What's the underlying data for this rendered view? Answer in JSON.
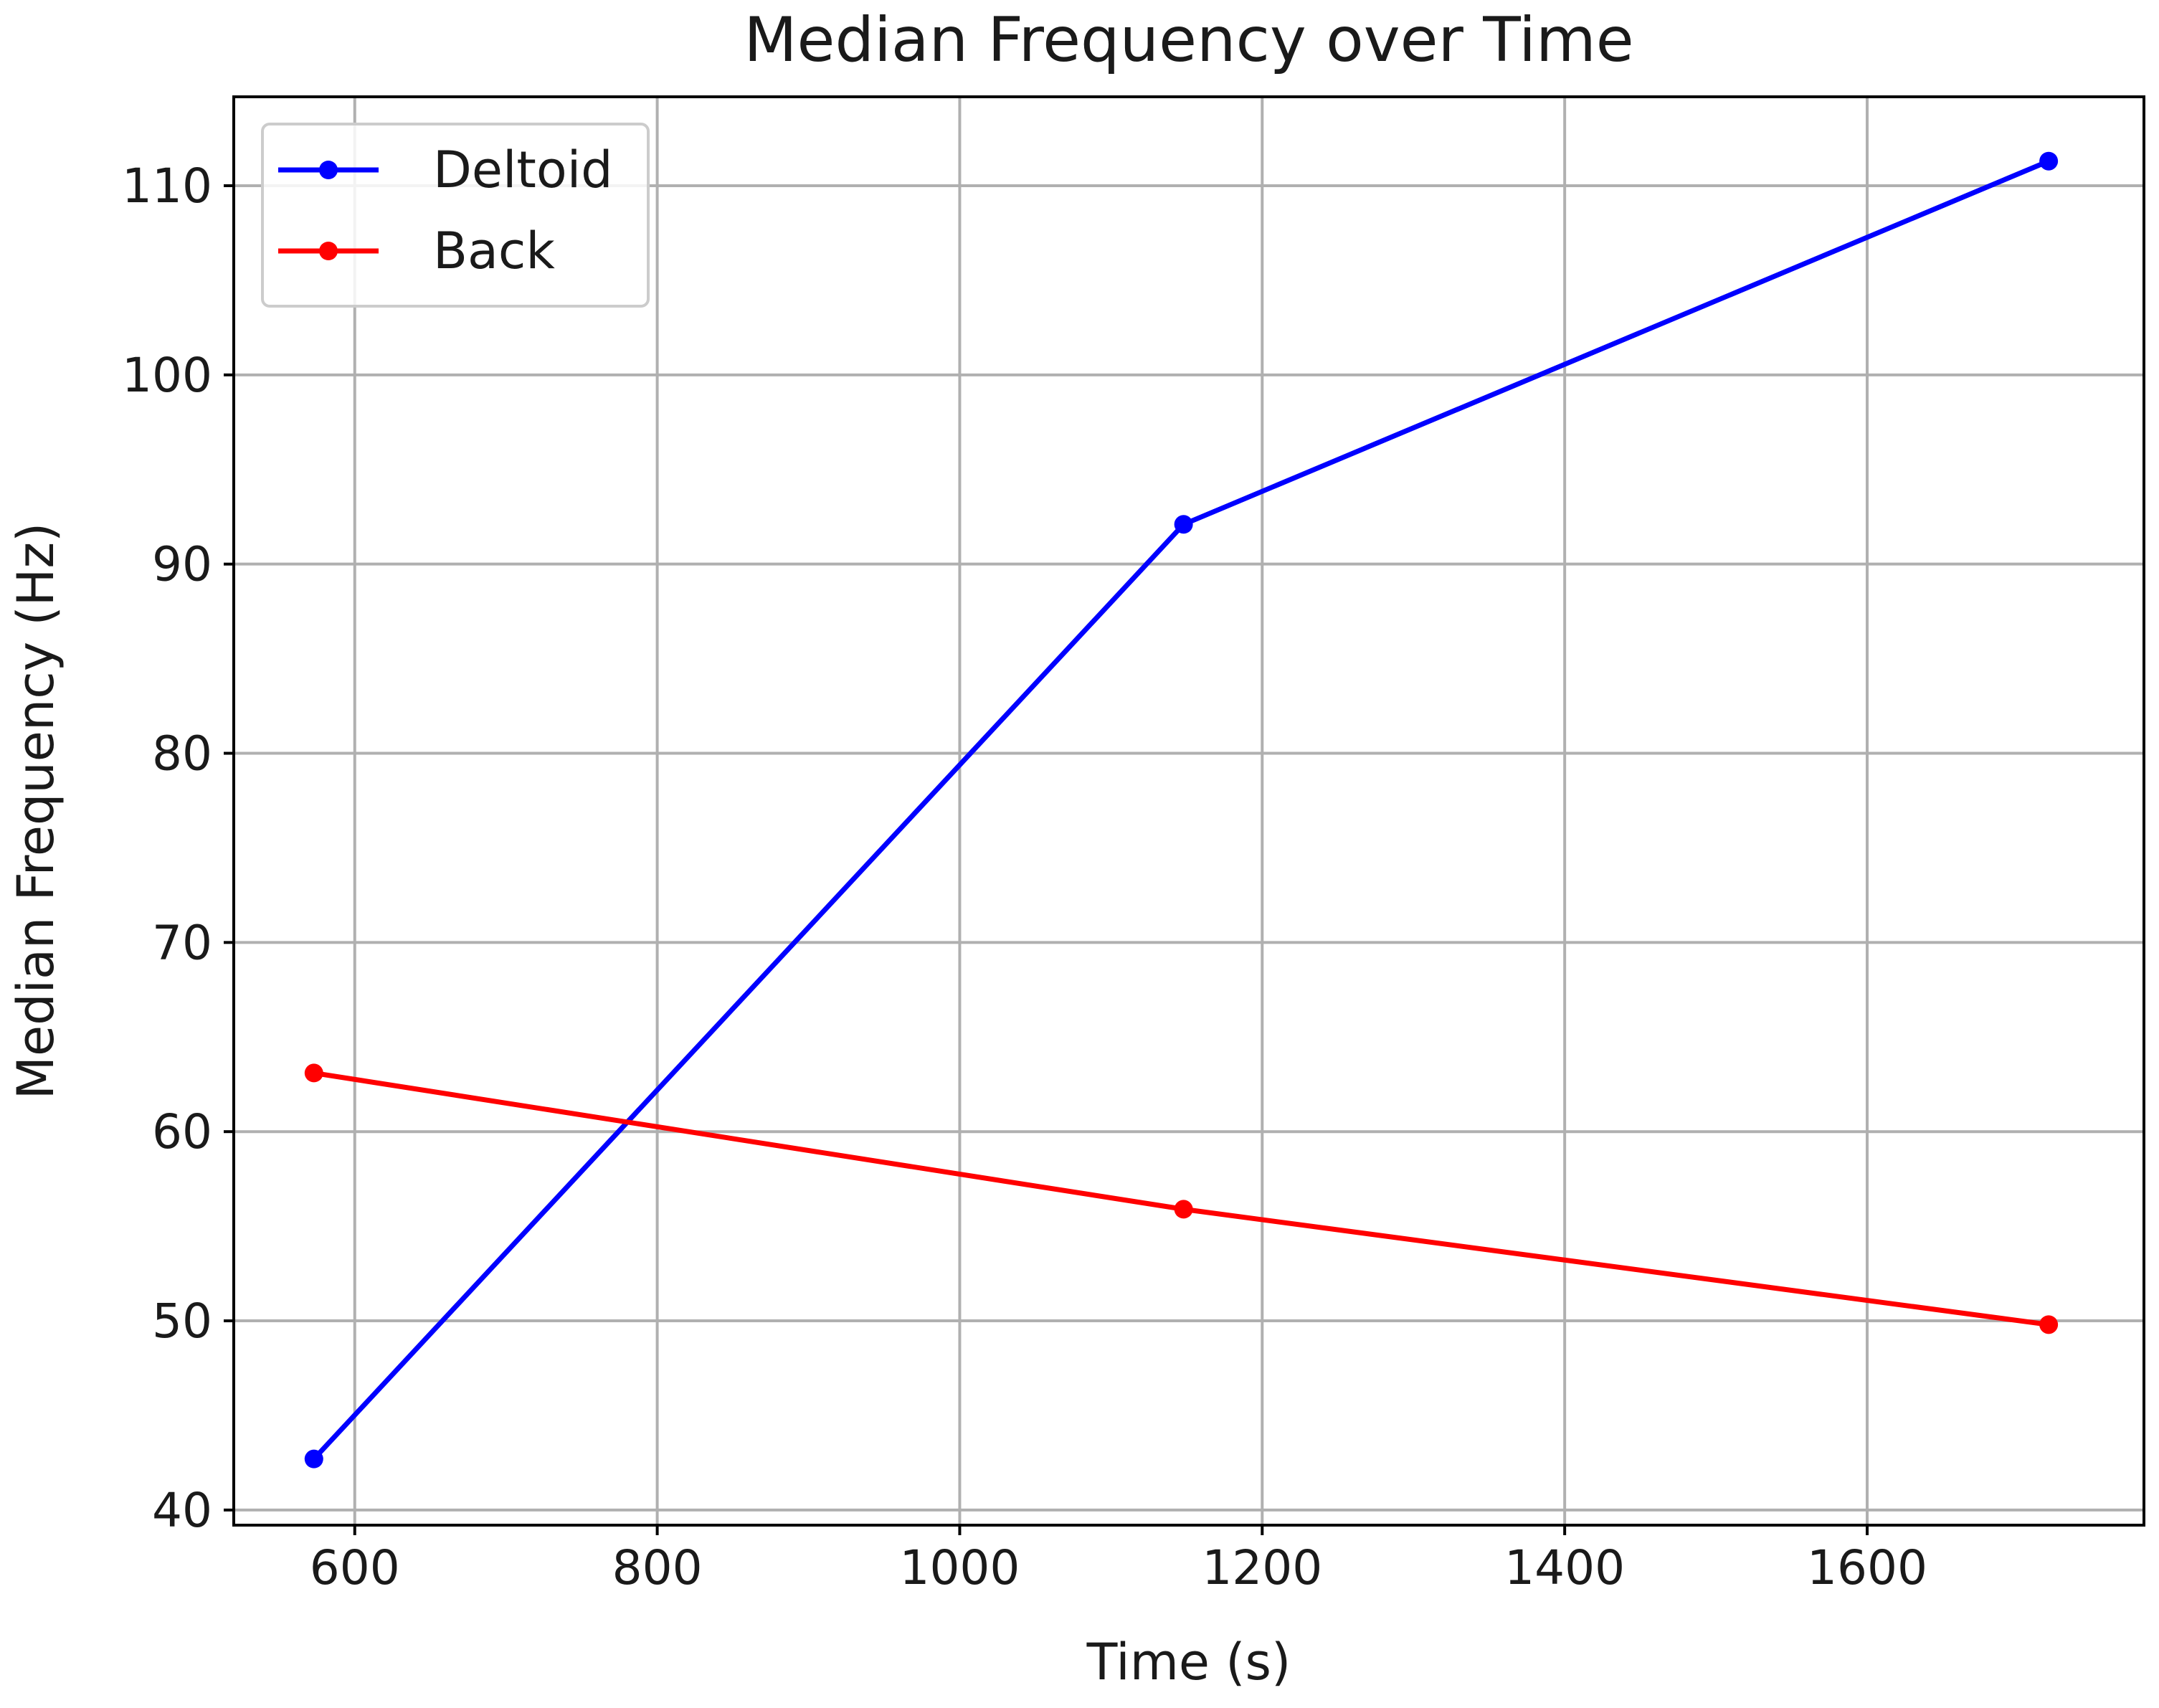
{
  "chart_data": {
    "type": "line",
    "title": "Median Frequency over Time",
    "xlabel": "Time (s)",
    "ylabel": "Median Frequency (Hz)",
    "x": [
      573,
      1148,
      1720
    ],
    "xlim": [
      520,
      1783
    ],
    "ylim": [
      39.2,
      114.7
    ],
    "xticks": [
      600,
      800,
      1000,
      1200,
      1400,
      1600
    ],
    "yticks": [
      40,
      50,
      60,
      70,
      80,
      90,
      100,
      110
    ],
    "xtick_labels": [
      "600",
      "800",
      "1000",
      "1200",
      "1400",
      "1600"
    ],
    "ytick_labels": [
      "40",
      "50",
      "60",
      "70",
      "80",
      "90",
      "100",
      "110"
    ],
    "grid": true,
    "legend_position": "top-left",
    "series": [
      {
        "name": "Deltoid",
        "color": "#0000ff",
        "values": [
          42.7,
          92.1,
          111.3
        ]
      },
      {
        "name": "Back",
        "color": "#ff0000",
        "values": [
          63.1,
          55.9,
          49.8
        ]
      }
    ]
  }
}
